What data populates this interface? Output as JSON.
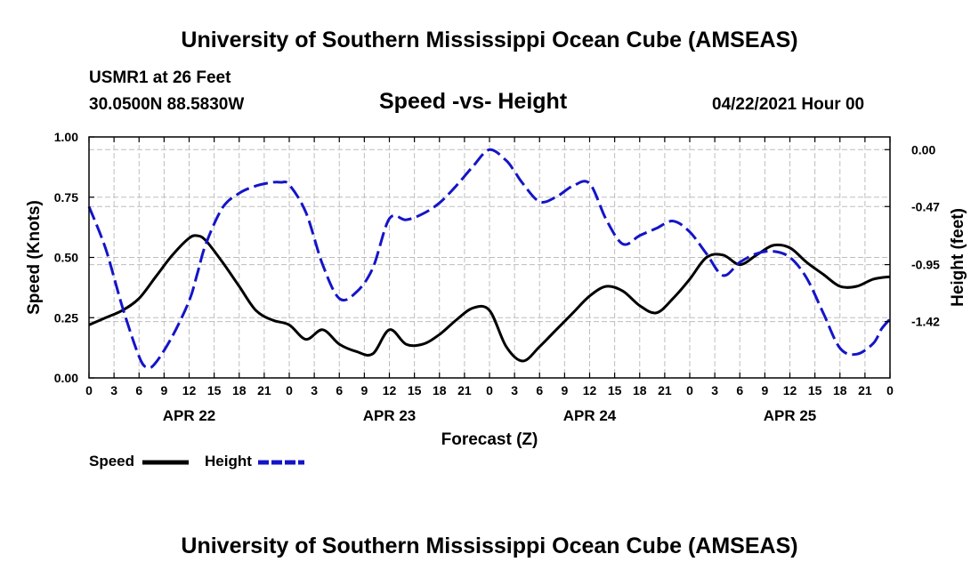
{
  "header": {
    "title": "University of Southern Mississippi Ocean Cube (AMSEAS)",
    "station": "USMR1 at 26 Feet",
    "coords": "30.0500N  88.5830W",
    "subtitle": "Speed -vs- Height",
    "datetime": "04/22/2021 Hour 00"
  },
  "footer": {
    "title": "University of Southern Mississippi Ocean Cube (AMSEAS)"
  },
  "legend": {
    "speed_label": "Speed",
    "height_label": "Height"
  },
  "colors": {
    "speed": "#000000",
    "height": "#1414c8",
    "grid": "#bdbdbd"
  },
  "chart_data": {
    "type": "line",
    "title": "Speed -vs- Height",
    "xlabel": "Forecast (Z)",
    "ylabel": "Speed (Knots)",
    "y2label": "Height (feet)",
    "x_range": [
      0,
      96
    ],
    "ylim": [
      0,
      1
    ],
    "y2lim": [
      0.105,
      -1.886
    ],
    "x_ticks": [
      0,
      3,
      6,
      9,
      12,
      15,
      18,
      21,
      24,
      27,
      30,
      33,
      36,
      39,
      42,
      45,
      48,
      51,
      54,
      57,
      60,
      63,
      66,
      69,
      72,
      75,
      78,
      81,
      84,
      87,
      90,
      93,
      96
    ],
    "x_tick_labels": [
      "0",
      "3",
      "6",
      "9",
      "12",
      "15",
      "18",
      "21",
      "0",
      "3",
      "6",
      "9",
      "12",
      "15",
      "18",
      "21",
      "0",
      "3",
      "6",
      "9",
      "12",
      "15",
      "18",
      "21",
      "0",
      "3",
      "6",
      "9",
      "12",
      "15",
      "18",
      "21",
      "0"
    ],
    "date_labels": [
      {
        "label": "APR 22",
        "x": 12
      },
      {
        "label": "APR 23",
        "x": 36
      },
      {
        "label": "APR 24",
        "x": 60
      },
      {
        "label": "APR 25",
        "x": 84
      }
    ],
    "y_ticks": [
      0.0,
      0.25,
      0.5,
      0.75,
      1.0
    ],
    "y_tick_labels": [
      "0.00",
      "0.25",
      "0.50",
      "0.75",
      "1.00"
    ],
    "y2_ticks": [
      0.0,
      -0.47,
      -0.95,
      -1.42
    ],
    "y2_tick_labels": [
      "0.00",
      "-0.47",
      "-0.95",
      "-1.42"
    ],
    "series": [
      {
        "name": "Speed",
        "axis": "left",
        "style": "solid",
        "x": [
          0,
          2,
          4,
          6,
          8,
          10,
          12,
          13,
          14,
          16,
          18,
          20,
          22,
          24,
          26,
          28,
          30,
          32,
          34,
          36,
          38,
          40,
          42,
          44,
          46,
          48,
          50,
          52,
          54,
          56,
          58,
          60,
          62,
          64,
          66,
          68,
          70,
          72,
          74,
          76,
          78,
          80,
          82,
          84,
          86,
          88,
          90,
          92,
          94,
          96
        ],
        "values": [
          0.22,
          0.25,
          0.28,
          0.33,
          0.42,
          0.51,
          0.58,
          0.59,
          0.57,
          0.48,
          0.38,
          0.28,
          0.24,
          0.22,
          0.16,
          0.2,
          0.14,
          0.11,
          0.1,
          0.2,
          0.14,
          0.14,
          0.18,
          0.24,
          0.29,
          0.28,
          0.13,
          0.07,
          0.13,
          0.2,
          0.27,
          0.34,
          0.38,
          0.36,
          0.3,
          0.27,
          0.33,
          0.41,
          0.5,
          0.51,
          0.47,
          0.51,
          0.55,
          0.54,
          0.48,
          0.43,
          0.38,
          0.38,
          0.41,
          0.42
        ]
      },
      {
        "name": "Height",
        "axis": "right",
        "style": "dashed",
        "x": [
          0,
          2,
          4,
          6,
          7,
          8,
          10,
          12,
          13,
          14,
          16,
          18,
          20,
          22,
          23,
          24,
          26,
          28,
          30,
          32,
          34,
          36,
          38,
          40,
          42,
          44,
          46,
          48,
          50,
          51,
          52,
          54,
          56,
          58,
          60,
          62,
          64,
          66,
          68,
          70,
          72,
          74,
          76,
          78,
          80,
          82,
          84,
          86,
          88,
          90,
          92,
          94,
          95,
          96
        ],
        "values": [
          -0.47,
          -0.82,
          -1.3,
          -1.71,
          -1.8,
          -1.76,
          -1.54,
          -1.25,
          -1.02,
          -0.78,
          -0.48,
          -0.36,
          -0.3,
          -0.27,
          -0.27,
          -0.29,
          -0.52,
          -0.95,
          -1.23,
          -1.18,
          -0.98,
          -0.57,
          -0.58,
          -0.53,
          -0.44,
          -0.3,
          -0.14,
          0.0,
          -0.09,
          -0.18,
          -0.28,
          -0.43,
          -0.39,
          -0.3,
          -0.28,
          -0.58,
          -0.78,
          -0.71,
          -0.65,
          -0.59,
          -0.68,
          -0.86,
          -1.04,
          -0.93,
          -0.86,
          -0.84,
          -0.89,
          -1.06,
          -1.35,
          -1.64,
          -1.69,
          -1.6,
          -1.48,
          -1.4
        ]
      }
    ]
  }
}
